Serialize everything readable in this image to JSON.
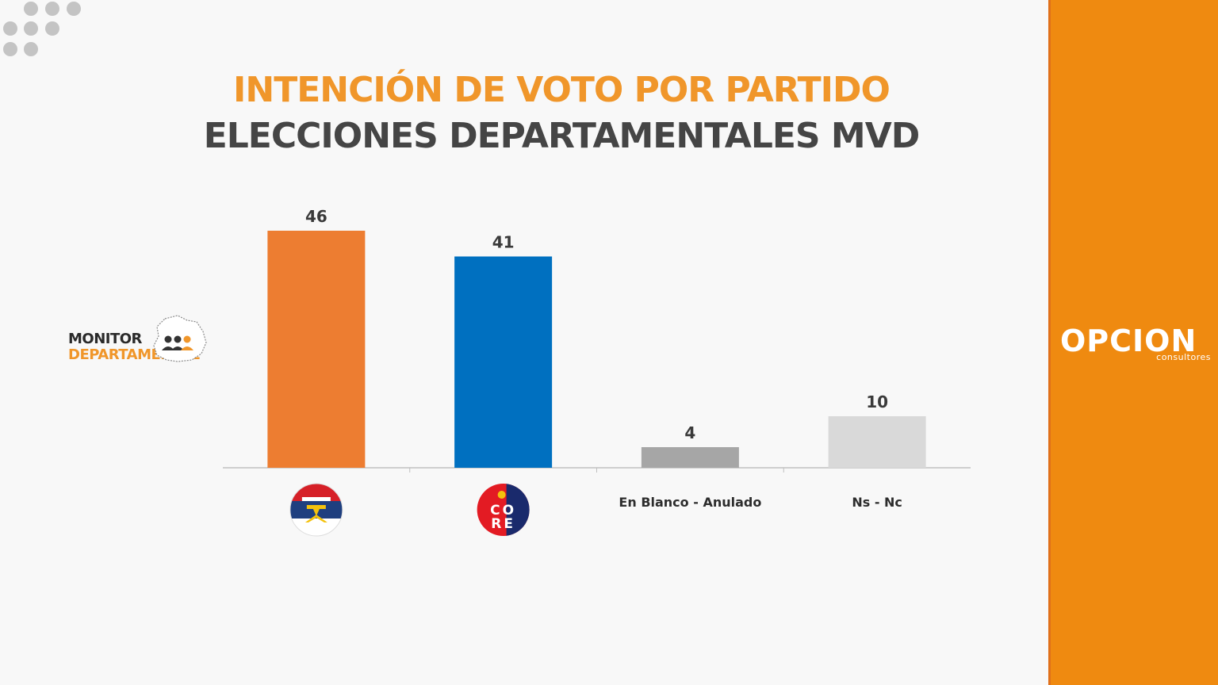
{
  "header": {
    "title": "INTENCIÓN DE VOTO POR PARTIDO",
    "subtitle": "ELECCIONES DEPARTAMENTALES MVD"
  },
  "logos": {
    "monitor_line1": "MONITOR",
    "monitor_line2": "DEPARTAMENTAL",
    "opcion_name": "OPCION",
    "opcion_tagline": "consultores"
  },
  "chart_data": {
    "type": "bar",
    "categories": [
      "",
      "",
      "En Blanco - Anulado",
      "Ns - Nc"
    ],
    "category_icons": [
      "frente-amplio-flag-icon",
      "coalicion-republicana-core-icon",
      "",
      ""
    ],
    "core_icon_text": [
      "CO",
      "RE"
    ],
    "values": [
      46,
      41,
      4,
      10
    ],
    "bar_colors": [
      "#ed7d31",
      "#0070c0",
      "#a6a6a6",
      "#d9d9d9"
    ],
    "ylim": [
      0,
      46
    ],
    "grid": false,
    "legend": "none"
  },
  "colors": {
    "accent_orange": "#f0962a",
    "panel_orange": "#ef8a10",
    "title_gray": "#454545"
  }
}
